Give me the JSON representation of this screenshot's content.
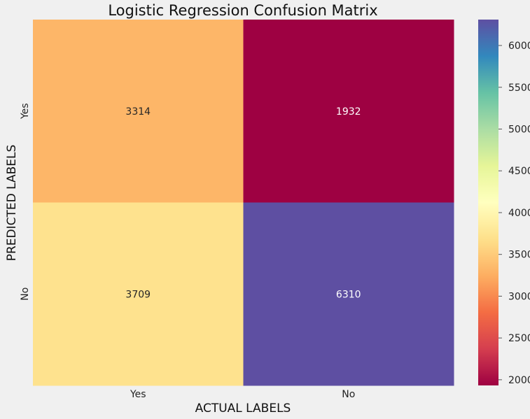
{
  "chart_data": {
    "type": "heatmap",
    "title": "Logistic Regression Confusion Matrix",
    "xlabel": "ACTUAL LABELS",
    "ylabel": "PREDICTED LABELS",
    "x_categories": [
      "Yes",
      "No"
    ],
    "y_categories": [
      "Yes",
      "No"
    ],
    "values": [
      [
        3314,
        1932
      ],
      [
        3709,
        6310
      ]
    ],
    "colormap": "Spectral",
    "color_range": [
      1932,
      6310
    ],
    "colorbar_ticks": [
      2000,
      2500,
      3000,
      3500,
      4000,
      4500,
      5000,
      5500,
      6000
    ],
    "grid": false,
    "colorbar_position": "right"
  }
}
